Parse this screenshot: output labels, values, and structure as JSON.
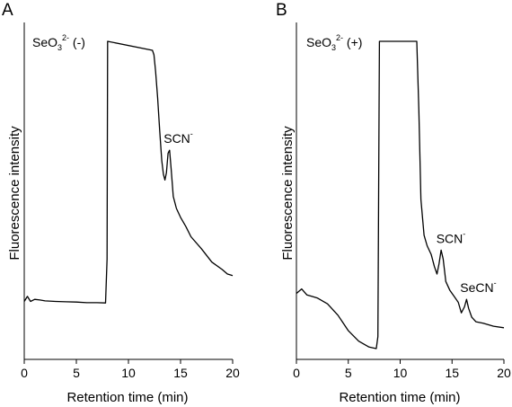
{
  "chart_data": [
    {
      "type": "line",
      "panel_letter": "A",
      "condition": {
        "base": "SeO",
        "sub": "3",
        "sup": "2-",
        "tail": " (-)"
      },
      "xlabel": "Retention time (min)",
      "ylabel": "Fluorescence intensity",
      "xlim": [
        0,
        20
      ],
      "xticks": [
        0,
        5,
        10,
        15,
        20
      ],
      "y_units": "relative",
      "ylim": [
        0,
        1
      ],
      "grid": false,
      "annotations": [
        {
          "label": "SCN",
          "sup": "-",
          "x": 13.9
        }
      ],
      "series": [
        {
          "x": [
            0,
            0.3,
            0.6,
            1.0,
            1.5,
            2,
            3,
            4,
            5,
            6,
            7,
            7.8,
            7.95,
            8.0,
            12.3,
            12.45,
            12.6,
            12.8,
            13.0,
            13.2,
            13.35,
            13.5,
            13.65,
            13.8,
            13.95,
            14.1,
            14.3,
            14.6,
            15.0,
            15.5,
            16,
            17,
            18,
            19,
            19.5,
            20
          ],
          "y": [
            0.158,
            0.175,
            0.158,
            0.165,
            0.163,
            0.16,
            0.158,
            0.157,
            0.156,
            0.154,
            0.154,
            0.153,
            0.3,
            1.03,
            1.0,
            0.985,
            0.93,
            0.84,
            0.73,
            0.63,
            0.585,
            0.565,
            0.59,
            0.655,
            0.665,
            0.6,
            0.51,
            0.47,
            0.44,
            0.41,
            0.375,
            0.335,
            0.29,
            0.265,
            0.25,
            0.245
          ]
        }
      ]
    },
    {
      "type": "line",
      "panel_letter": "B",
      "condition": {
        "base": "SeO",
        "sub": "3",
        "sup": "2-",
        "tail": " (+)"
      },
      "xlabel": "Retention time (min)",
      "ylabel": "Fluorescence intensity",
      "xlim": [
        0,
        20
      ],
      "xticks": [
        0,
        5,
        10,
        15,
        20
      ],
      "y_units": "relative",
      "ylim": [
        0,
        1
      ],
      "grid": false,
      "annotations": [
        {
          "label": "SCN",
          "sup": "-",
          "x": 14.0
        },
        {
          "label": "SeCN",
          "sup": "-",
          "x": 16.3
        }
      ],
      "series": [
        {
          "x": [
            0,
            0.5,
            1.0,
            1.5,
            2,
            3,
            4,
            5,
            6,
            7,
            7.7,
            7.85,
            8.0,
            11.6,
            11.8,
            12.0,
            12.3,
            12.6,
            13.0,
            13.3,
            13.55,
            13.75,
            13.95,
            14.15,
            14.4,
            14.8,
            15.2,
            15.6,
            15.9,
            16.2,
            16.4,
            16.6,
            16.9,
            17.3,
            18,
            19,
            20
          ],
          "y": [
            0.185,
            0.2,
            0.18,
            0.175,
            0.17,
            0.15,
            0.112,
            0.06,
            0.025,
            0.005,
            0.0,
            0.04,
            1.03,
            1.03,
            0.8,
            0.5,
            0.38,
            0.345,
            0.315,
            0.275,
            0.25,
            0.285,
            0.33,
            0.3,
            0.225,
            0.195,
            0.175,
            0.155,
            0.12,
            0.14,
            0.165,
            0.135,
            0.105,
            0.09,
            0.085,
            0.075,
            0.07
          ]
        }
      ]
    }
  ]
}
